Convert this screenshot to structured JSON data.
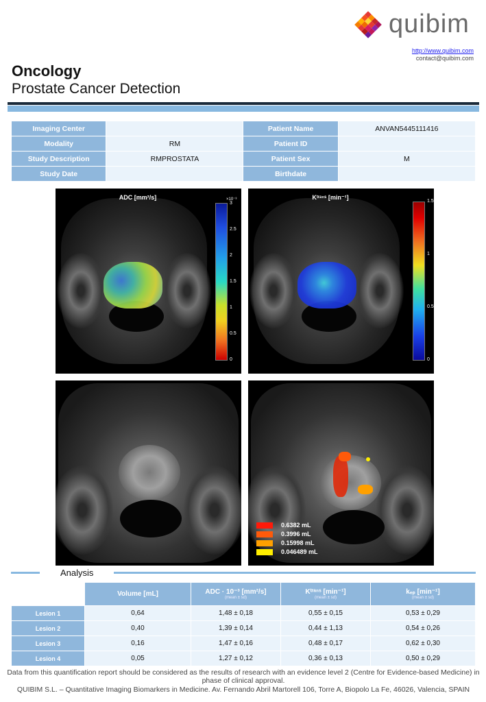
{
  "header": {
    "brand": "quibim",
    "url": "http://www.quibim.com",
    "contact": "contact@quibim.com",
    "title": "Oncology",
    "subtitle": "Prostate Cancer Detection"
  },
  "info": {
    "rows": [
      {
        "l1": "Imaging Center",
        "v1": "",
        "l2": "Patient Name",
        "v2": "ANVAN5445111416"
      },
      {
        "l1": "Modality",
        "v1": "RM",
        "l2": "Patient ID",
        "v2": ""
      },
      {
        "l1": "Study Description",
        "v1": "RMPROSTATA",
        "l2": "Patient Sex",
        "v2": "M"
      },
      {
        "l1": "Study Date",
        "v1": "",
        "l2": "Birthdate",
        "v2": ""
      }
    ]
  },
  "panels": {
    "adc": {
      "title": "ADC [mm²/s]",
      "scale_exp": "×10⁻³",
      "ticks": [
        "3",
        "2.5",
        "2",
        "1.5",
        "1",
        "0.5",
        "0"
      ]
    },
    "ktrans": {
      "title": "Kᵗʳᵃⁿˢ [min⁻¹]",
      "ticks": [
        "1.5",
        "1",
        "0.5",
        "0"
      ]
    },
    "lesions": [
      {
        "label": "0.6382 mL",
        "color": "#ff1a0a"
      },
      {
        "label": "0.3996 mL",
        "color": "#ff5a0a"
      },
      {
        "label": "0.15998 mL",
        "color": "#ffa000"
      },
      {
        "label": "0.046489 mL",
        "color": "#ffee00"
      }
    ]
  },
  "analysis": {
    "title": "Analysis",
    "col_volume": "Volume [mL]",
    "col_adc": "ADC · 10⁻³ [mm²/s]",
    "col_ktrans": "Kᵗʳᵃⁿˢ [min⁻¹]",
    "col_kep": "kₑₚ [min⁻¹]",
    "col_sub": "(mean ± sd)",
    "rows": [
      {
        "name": "Lesion 1",
        "vol": "0,64",
        "adc": "1,48 ±  0,18",
        "ktrans": "0,55  ± 0,15",
        "kep": "0,53  ± 0,29"
      },
      {
        "name": "Lesion 2",
        "vol": "0,40",
        "adc": "1,39 ±  0,14",
        "ktrans": "0,44  ± 1,13",
        "kep": "0,54  ± 0,26"
      },
      {
        "name": "Lesion 3",
        "vol": "0,16",
        "adc": "1,47 ±  0,16",
        "ktrans": "0,48  ± 0,17",
        "kep": "0,62  ± 0,30"
      },
      {
        "name": "Lesion 4",
        "vol": "0,05",
        "adc": "1,27 ± 0,12",
        "ktrans": "0,36  ± 0,13",
        "kep": "0,50  ± 0,29"
      }
    ]
  },
  "footer": {
    "disclaimer": "Data from this quantification report should be considered as  the results of research with an evidence level 2 (Centre for Evidence-based Medicine) in phase of clinical approval.",
    "company": "QUIBIM S.L. – Quantitative Imaging Biomarkers in Medicine. Av. Fernando Abril Martorell 106, Torre A, Biopolo La Fe, 46026, Valencia, SPAIN"
  }
}
